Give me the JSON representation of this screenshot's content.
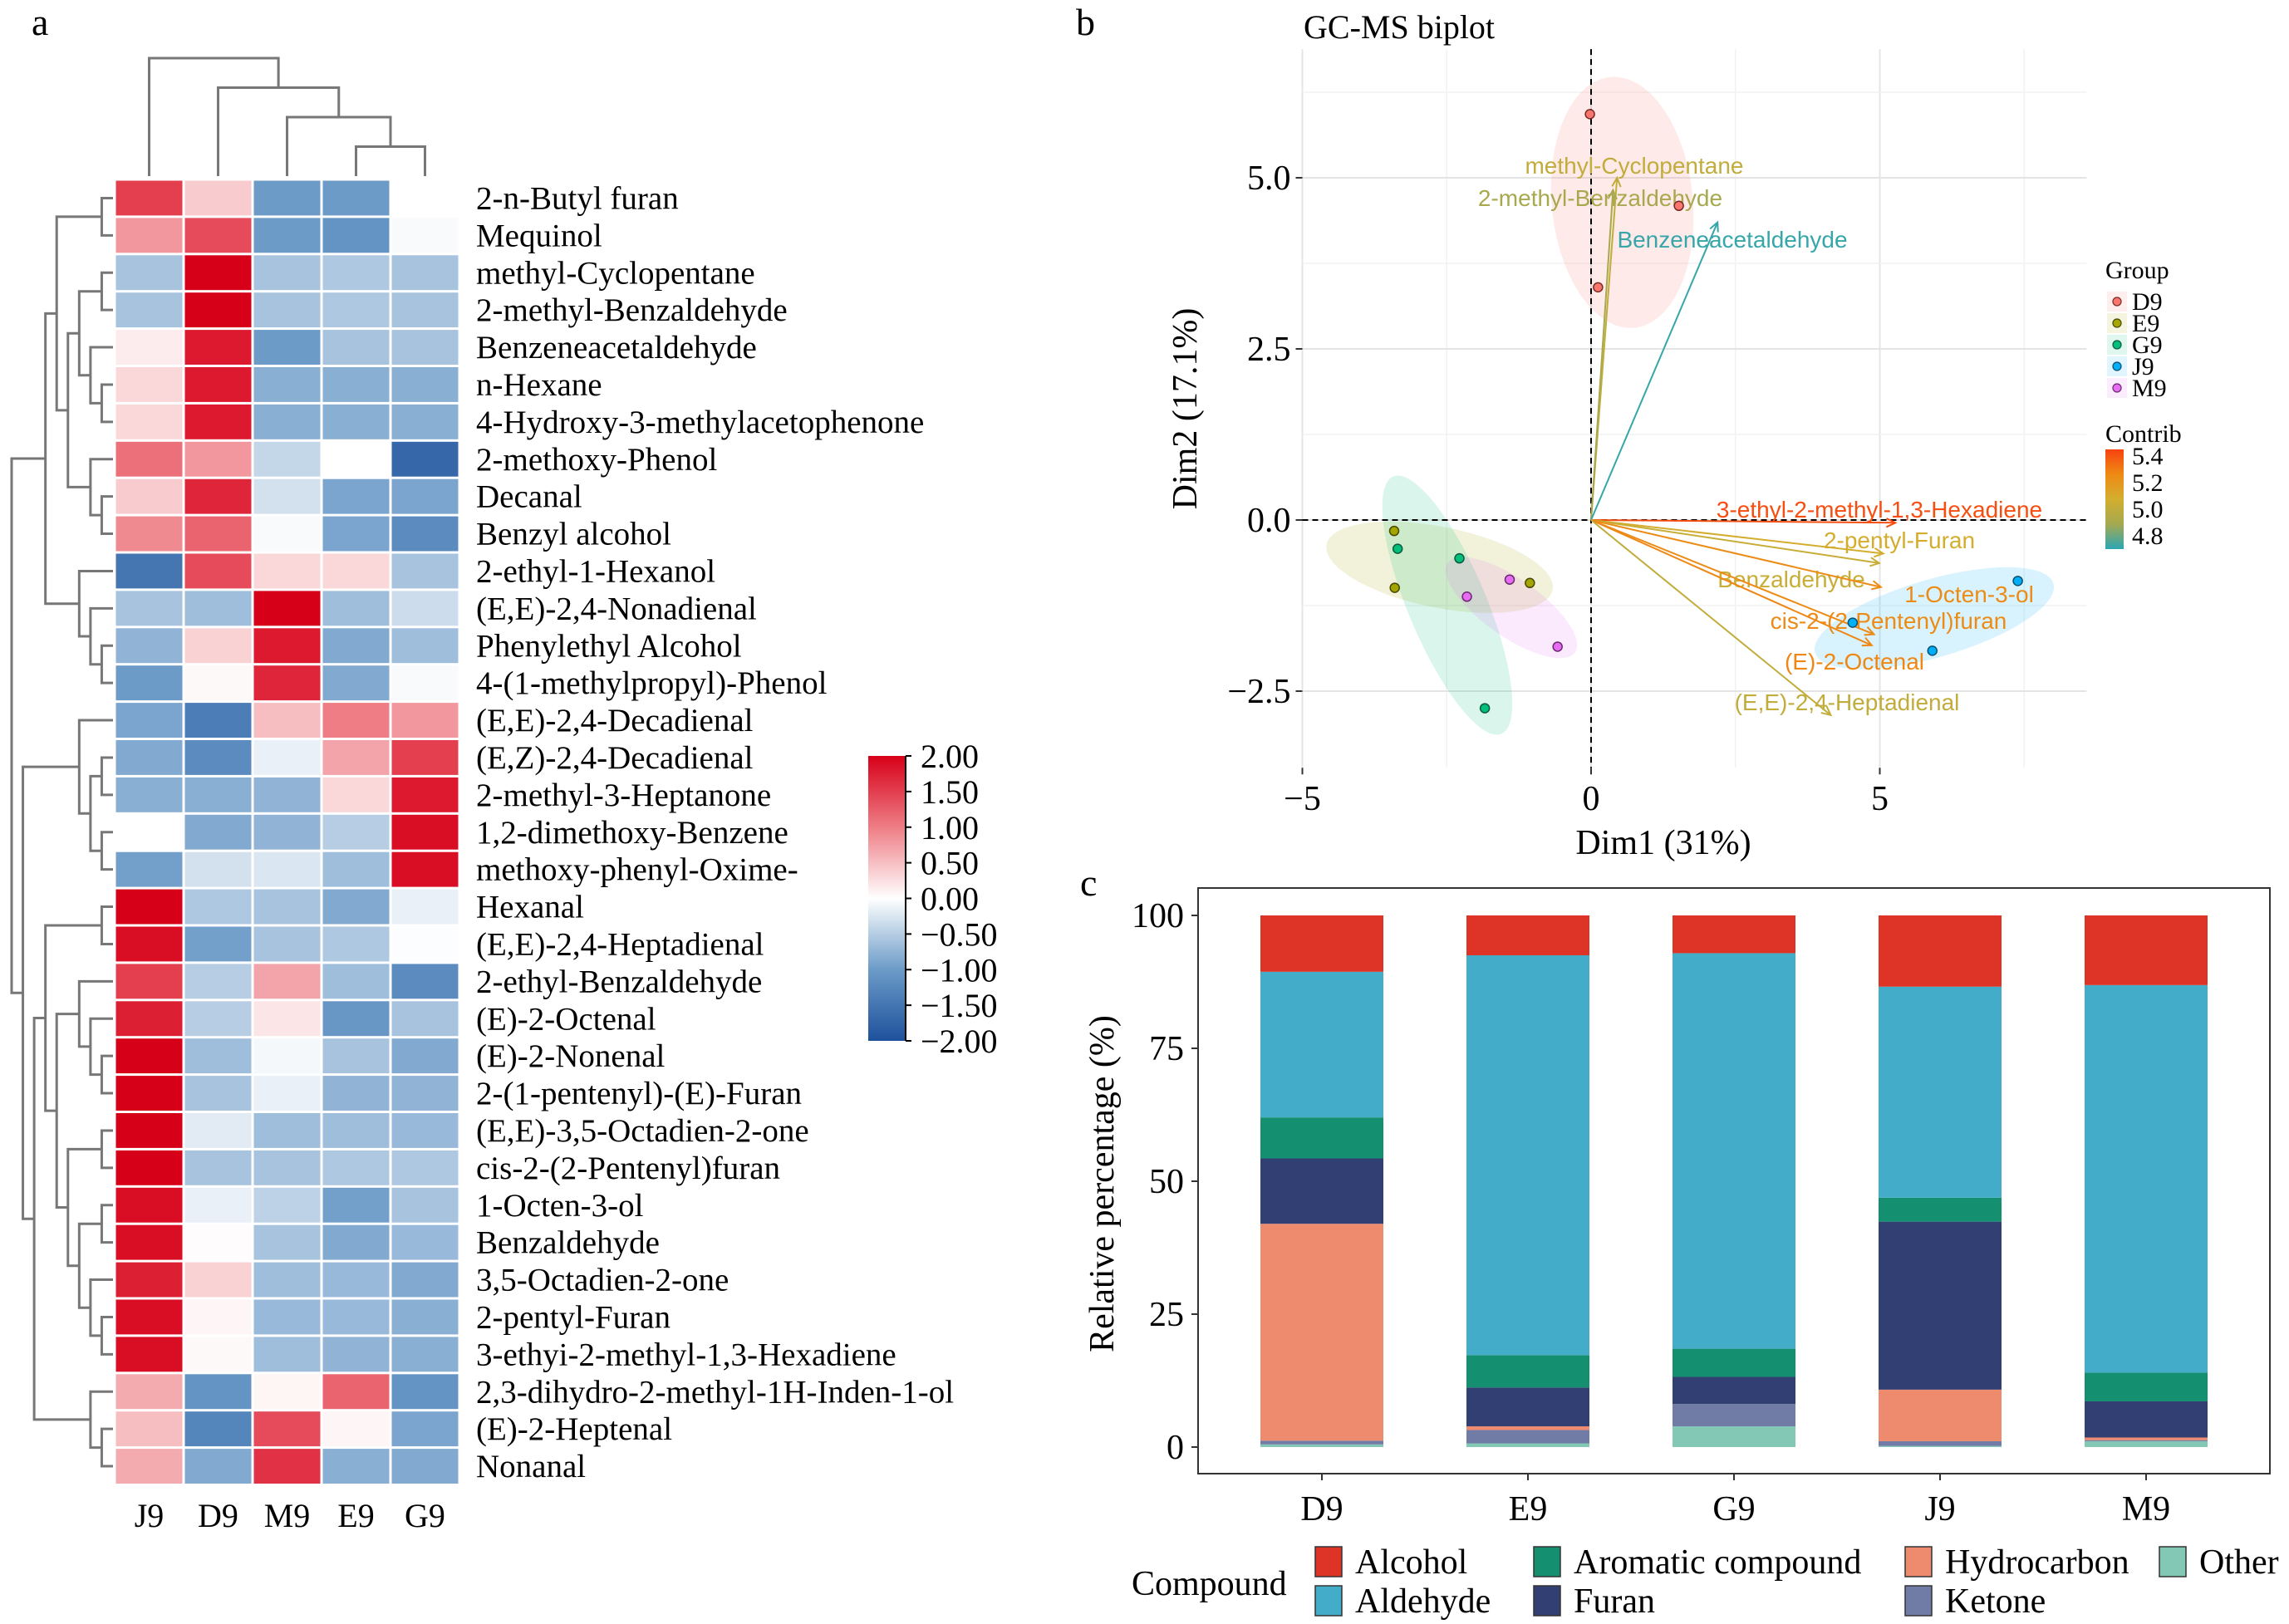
{
  "panel_letters": {
    "a": "a",
    "b": "b",
    "c": "c"
  },
  "chart_data": [
    {
      "type": "heatmap",
      "panel": "a",
      "columns": [
        "J9",
        "D9",
        "M9",
        "E9",
        "G9"
      ],
      "rows": [
        "2-n-Butyl furan",
        "Mequinol",
        "methyl-Cyclopentane",
        "2-methyl-Benzaldehyde",
        "Benzeneacetaldehyde",
        "n-Hexane",
        "4-Hydroxy-3-methylacetophenone",
        "2-methoxy-Phenol",
        "Decanal",
        "Benzyl alcohol",
        "2-ethyl-1-Hexanol",
        "(E,E)-2,4-Nonadienal",
        "Phenylethyl Alcohol",
        "4-(1-methylpropyl)-Phenol",
        "(E,E)-2,4-Decadienal",
        "(E,Z)-2,4-Decadienal",
        "2-methyl-3-Heptanone",
        "1,2-dimethoxy-Benzene",
        "methoxy-phenyl-Oxime-",
        "Hexanal",
        "(E,E)-2,4-Heptadienal",
        "2-ethyl-Benzaldehyde",
        "(E)-2-Octenal",
        "(E)-2-Nonenal",
        "2-(1-pentenyl)-(E)-Furan",
        "(E,E)-3,5-Octadien-2-one",
        "cis-2-(2-Pentenyl)furan",
        "1-Octen-3-ol",
        "Benzaldehyde",
        "3,5-Octadien-2-one",
        "2-pentyl-Furan",
        "3-ethyi-2-methyl-1,3-Hexadiene",
        "2,3-dihydro-2-methyl-1H-Inden-1-ol",
        "(E)-2-Heptenal",
        "Nonanal"
      ],
      "values": [
        [
          1.5,
          0.4,
          -1.0,
          -1.0,
          0.0
        ],
        [
          0.8,
          1.4,
          -1.0,
          -1.1,
          -0.05
        ],
        [
          -0.6,
          2.0,
          -0.6,
          -0.55,
          -0.6
        ],
        [
          -0.6,
          2.0,
          -0.6,
          -0.55,
          -0.6
        ],
        [
          0.15,
          1.8,
          -1.0,
          -0.6,
          -0.6
        ],
        [
          0.3,
          1.8,
          -0.8,
          -0.8,
          -0.8
        ],
        [
          0.3,
          1.8,
          -0.8,
          -0.8,
          -0.8
        ],
        [
          1.1,
          0.8,
          -0.4,
          0.0,
          -1.7
        ],
        [
          0.4,
          1.7,
          -0.3,
          -0.9,
          -0.9
        ],
        [
          0.9,
          1.2,
          -0.05,
          -0.9,
          -1.2
        ],
        [
          -1.5,
          1.4,
          0.3,
          0.3,
          -0.6
        ],
        [
          -0.6,
          -0.65,
          2.0,
          -0.65,
          -0.35
        ],
        [
          -0.75,
          0.35,
          1.8,
          -0.85,
          -0.65
        ],
        [
          -1.0,
          0.05,
          1.7,
          -0.85,
          -0.05
        ],
        [
          -0.9,
          -1.4,
          0.5,
          1.0,
          0.8
        ],
        [
          -0.85,
          -1.2,
          -0.15,
          0.7,
          1.5
        ],
        [
          -0.8,
          -0.8,
          -0.75,
          0.3,
          1.8
        ],
        [
          0.0,
          -0.85,
          -0.75,
          -0.5,
          1.9
        ],
        [
          -0.95,
          -0.3,
          -0.25,
          -0.65,
          1.9
        ],
        [
          2.0,
          -0.55,
          -0.6,
          -0.85,
          -0.15
        ],
        [
          1.9,
          -0.95,
          -0.6,
          -0.55,
          -0.02
        ],
        [
          1.5,
          -0.5,
          0.7,
          -0.65,
          -1.2
        ],
        [
          1.75,
          -0.5,
          0.2,
          -1.05,
          -0.6
        ],
        [
          2.0,
          -0.65,
          -0.07,
          -0.6,
          -0.85
        ],
        [
          2.0,
          -0.6,
          -0.15,
          -0.75,
          -0.75
        ],
        [
          2.0,
          -0.2,
          -0.65,
          -0.65,
          -0.7
        ],
        [
          2.0,
          -0.6,
          -0.6,
          -0.55,
          -0.55
        ],
        [
          1.9,
          -0.15,
          -0.45,
          -0.95,
          -0.6
        ],
        [
          1.9,
          0.02,
          -0.6,
          -0.85,
          -0.7
        ],
        [
          1.75,
          0.35,
          -0.65,
          -0.7,
          -0.85
        ],
        [
          1.9,
          0.07,
          -0.7,
          -0.7,
          -0.8
        ],
        [
          1.9,
          0.05,
          -0.65,
          -0.75,
          -0.8
        ],
        [
          0.65,
          -1.1,
          0.08,
          1.2,
          -1.1
        ],
        [
          0.5,
          -1.3,
          1.4,
          0.07,
          -0.9
        ],
        [
          0.65,
          -0.85,
          1.6,
          -0.8,
          -0.85
        ]
      ],
      "row_tree": [
        [
          [
            [
              0,
              1
            ],
            [
              [
                [
                  2,
                  3
                ],
                [
                  4,
                  [
                    5,
                    6
                  ]
                ]
              ],
              [
                7,
                [
                  8,
                  9
                ]
              ]
            ]
          ],
          [
            10,
            [
              11,
              [
                12,
                13
              ]
            ]
          ]
        ],
        [
          [
            14,
            [
              [
                15,
                16
              ],
              [
                17,
                18
              ]
            ]
          ],
          [
            [
              [
                19,
                20
              ],
              [
                [
                  21,
                  [
                    22,
                    [
                      23,
                      24
                    ]
                  ]
                ],
                [
                  [
                    25,
                    26
                  ],
                  [
                    [
                      27,
                      28
                    ],
                    [
                      29,
                      [
                        30,
                        31
                      ]
                    ]
                  ]
                ]
              ]
            ],
            [
              32,
              [
                33,
                34
              ]
            ]
          ]
        ]
      ],
      "column_tree": [
        0,
        [
          1,
          [
            2,
            [
              3,
              4
            ]
          ]
        ]
      ],
      "color_scale": {
        "min": -2,
        "max": 2,
        "colors": [
          "#1D519C",
          "#6C9BC8",
          "#FFFFFF",
          "#EE7D85",
          "#D70019"
        ],
        "ticks": [
          "2.00",
          "1.50",
          "1.00",
          "0.50",
          "0.00",
          "−0.50",
          "−1.00",
          "−1.50",
          "−2.00"
        ],
        "tick_values": [
          2,
          1.5,
          1,
          0.5,
          0,
          -0.5,
          -1,
          -1.5,
          -2
        ]
      }
    },
    {
      "type": "scatter",
      "panel": "b",
      "title": "GC-MS biplot",
      "xlabel": "Dim1 (31%)",
      "ylabel": "Dim2 (17.1%)",
      "xlim": [
        -5,
        8.58
      ],
      "ylim": [
        -3.62,
        6.88
      ],
      "xticks": [
        -5,
        0,
        5
      ],
      "xtick_labels": [
        "−5",
        "0",
        "5"
      ],
      "yticks": [
        -2.5,
        0,
        2.5,
        5
      ],
      "ytick_labels": [
        "−2.5",
        "0.0",
        "2.5",
        "5.0"
      ],
      "grid": true,
      "legend_group_title": "Group",
      "groups": [
        {
          "name": "D9",
          "color": "#F8766D",
          "points": [
            [
              -0.02,
              5.93
            ],
            [
              1.52,
              4.59
            ],
            [
              0.12,
              3.4
            ]
          ]
        },
        {
          "name": "E9",
          "color": "#A3A500",
          "points": [
            [
              -3.41,
              -0.16
            ],
            [
              -3.4,
              -0.99
            ],
            [
              -1.06,
              -0.92
            ]
          ]
        },
        {
          "name": "G9",
          "color": "#00BF7D",
          "points": [
            [
              -3.35,
              -0.42
            ],
            [
              -2.28,
              -0.56
            ],
            [
              -1.84,
              -2.75
            ]
          ]
        },
        {
          "name": "J9",
          "color": "#00B0F6",
          "points": [
            [
              7.39,
              -0.89
            ],
            [
              4.53,
              -1.5
            ],
            [
              5.91,
              -1.91
            ]
          ]
        },
        {
          "name": "M9",
          "color": "#E76BF3",
          "points": [
            [
              -1.41,
              -0.87
            ],
            [
              -2.15,
              -1.12
            ],
            [
              -0.58,
              -1.85
            ]
          ]
        }
      ],
      "legend_contrib_title": "Contrib",
      "contrib_scale": {
        "min": 4.7,
        "max": 5.45,
        "colors": [
          "#2AA6B4",
          "#A5A950",
          "#D3AE2F",
          "#EE8A14",
          "#F8420F"
        ],
        "ticks": [
          "5.4",
          "5.2",
          "5.0",
          "4.8"
        ],
        "tick_values": [
          5.4,
          5.2,
          5.0,
          4.8
        ]
      },
      "variables": [
        {
          "name": "methyl-Cyclopentane",
          "x": 0.45,
          "y": 5.0,
          "contrib": 5.0
        },
        {
          "name": "2-methyl-Benzaldehyde",
          "x": 0.38,
          "y": 4.82,
          "contrib": 4.9
        },
        {
          "name": "Benzeneacetaldehyde",
          "x": 2.19,
          "y": 4.35,
          "contrib": 4.72
        },
        {
          "name": "3-ethyl-2-methyl-1,3-Hexadiene",
          "x": 5.27,
          "y": -0.04,
          "contrib": 5.42
        },
        {
          "name": "2-pentyl-Furan",
          "x": 5.06,
          "y": -0.49,
          "contrib": 5.08
        },
        {
          "name": "Benzaldehyde",
          "x": 4.99,
          "y": -0.63,
          "contrib": 5.03
        },
        {
          "name": "1-Octen-3-ol",
          "x": 5.02,
          "y": -0.98,
          "contrib": 5.25
        },
        {
          "name": "cis-2-(2-Pentenyl)furan",
          "x": 4.9,
          "y": -1.67,
          "contrib": 5.25
        },
        {
          "name": "(E)-2-Octenal",
          "x": 4.86,
          "y": -1.83,
          "contrib": 5.27
        },
        {
          "name": "(E,E)-2,4-Heptadienal",
          "x": 4.15,
          "y": -2.85,
          "contrib": 5.0
        }
      ]
    },
    {
      "type": "bar",
      "stacked": true,
      "panel": "c",
      "categories": [
        "D9",
        "E9",
        "G9",
        "J9",
        "M9"
      ],
      "ylabel": "Relative percentage (%)",
      "ylim": [
        0,
        100
      ],
      "yticks": [
        0,
        25,
        50,
        75,
        100
      ],
      "legend_title": "Compound",
      "series": [
        {
          "name": "Other",
          "color": "#83C8B4",
          "values": [
            0.5,
            0.7,
            3.9,
            0.2,
            1.1
          ]
        },
        {
          "name": "Ketone",
          "color": "#717CA6",
          "values": [
            0.7,
            2.5,
            4.2,
            0.9,
            0.2
          ]
        },
        {
          "name": "Hydrocarbon",
          "color": "#EE8A6E",
          "values": [
            40.8,
            0.7,
            0.0,
            9.7,
            0.5
          ]
        },
        {
          "name": "Furan",
          "color": "#313F72",
          "values": [
            12.3,
            7.3,
            5.1,
            31.6,
            6.8
          ]
        },
        {
          "name": "Aromatic compound",
          "color": "#148F6F",
          "values": [
            7.7,
            6.1,
            5.3,
            4.5,
            5.4
          ]
        },
        {
          "name": "Aldehyde",
          "color": "#42ACC9",
          "values": [
            27.4,
            75.2,
            74.4,
            39.7,
            72.9
          ]
        },
        {
          "name": "Alcohol",
          "color": "#DE3427",
          "values": [
            10.6,
            7.5,
            7.1,
            13.4,
            13.1
          ]
        }
      ],
      "legend_order": [
        "Alcohol",
        "Aldehyde",
        "Aromatic compound",
        "Furan",
        "Hydrocarbon",
        "Ketone",
        "Other"
      ]
    }
  ]
}
